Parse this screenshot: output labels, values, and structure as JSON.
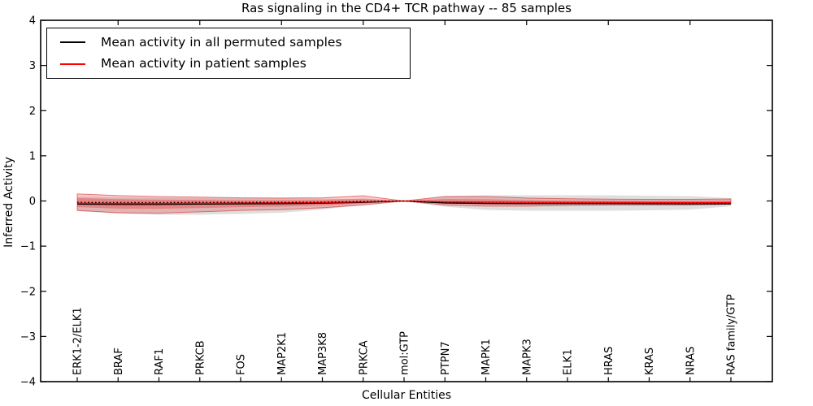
{
  "figure": {
    "title": "Ras signaling in the CD4+ TCR pathway -- 85 samples",
    "xlabel": "Cellular Entities",
    "ylabel": "Inferred Activity"
  },
  "legend": {
    "position": "upper left",
    "entries": [
      {
        "label": "Mean activity in all permuted samples",
        "color": "#000000",
        "style": "solid"
      },
      {
        "label": "Mean activity in patient samples",
        "color": "#ff0000",
        "style": "solid"
      }
    ]
  },
  "colors": {
    "axis": "#000000",
    "permuted_band_fill": "rgba(150,150,150,0.30)",
    "patient_band_outer_fill": "rgba(235,40,40,0.24)",
    "patient_band_outer_stroke": "rgba(215,45,45,0.60)",
    "patient_band_inner_fill": "rgba(235,40,40,0.34)",
    "permuted_line": "#000000",
    "patient_line": "#ff0000",
    "dotted_line": "#000000"
  },
  "chart_data": {
    "type": "line",
    "title": "Ras signaling in the CD4+ TCR pathway -- 85 samples",
    "xlabel": "Cellular Entities",
    "ylabel": "Inferred Activity",
    "ylim": [
      -4,
      4
    ],
    "yticks": [
      -4,
      -3,
      -2,
      -1,
      0,
      1,
      2,
      3,
      4
    ],
    "grid": false,
    "legend_position": "upper left",
    "categories": [
      "ERK1-2/ELK1",
      "BRAF",
      "RAF1",
      "PRKCB",
      "FOS",
      "MAP2K1",
      "MAP3K8",
      "PRKCA",
      "mol:GTP",
      "PTPN7",
      "MAPK1",
      "MAPK3",
      "ELK1",
      "HRAS",
      "KRAS",
      "NRAS",
      "RAS family/GTP"
    ],
    "series": [
      {
        "name": "Mean activity in all permuted samples",
        "color": "#000000",
        "style": "solid",
        "values": [
          -0.07,
          -0.075,
          -0.075,
          -0.07,
          -0.065,
          -0.06,
          -0.05,
          -0.03,
          0,
          -0.045,
          -0.055,
          -0.058,
          -0.06,
          -0.06,
          -0.062,
          -0.065,
          -0.065
        ]
      },
      {
        "name": "Mean activity in patient samples",
        "color": "#ff0000",
        "style": "solid",
        "values": [
          -0.05,
          -0.055,
          -0.055,
          -0.05,
          -0.045,
          -0.04,
          -0.035,
          -0.02,
          0,
          -0.02,
          -0.025,
          -0.028,
          -0.03,
          -0.03,
          -0.032,
          -0.035,
          -0.035
        ]
      },
      {
        "name": "dotted-reference",
        "color": "#000000",
        "style": "dotted",
        "values": [
          -0.03,
          -0.035,
          -0.035,
          -0.03,
          -0.03,
          -0.028,
          -0.025,
          -0.012,
          0,
          -0.04,
          -0.05,
          -0.052,
          -0.054,
          -0.054,
          -0.055,
          -0.055,
          -0.055
        ]
      }
    ],
    "bands": [
      {
        "name": "permuted-samples-band",
        "top": [
          0.1,
          0.08,
          0.08,
          0.07,
          0.06,
          0.06,
          0.055,
          0.035,
          0,
          0.108,
          0.125,
          0.125,
          0.125,
          0.125,
          0.117,
          0.108,
          0.063
        ],
        "bottom": [
          -0.225,
          -0.28,
          -0.305,
          -0.305,
          -0.288,
          -0.26,
          -0.19,
          -0.08,
          0,
          -0.126,
          -0.198,
          -0.216,
          -0.216,
          -0.216,
          -0.207,
          -0.19,
          -0.117
        ]
      },
      {
        "name": "patient-samples-band-outer",
        "top": [
          0.155,
          0.12,
          0.1,
          0.085,
          0.07,
          0.065,
          0.07,
          0.115,
          0,
          0.1,
          0.1,
          0.065,
          0.05,
          0.04,
          0.035,
          0.035,
          0.045
        ],
        "bottom": [
          -0.21,
          -0.26,
          -0.27,
          -0.24,
          -0.21,
          -0.19,
          -0.15,
          -0.09,
          0,
          -0.09,
          -0.115,
          -0.115,
          -0.1,
          -0.09,
          -0.09,
          -0.09,
          -0.07
        ]
      },
      {
        "name": "patient-samples-band-inner",
        "top": [
          0.063,
          0.041,
          0.03,
          0.024,
          0.018,
          0.018,
          0.023,
          0.054,
          0,
          0.044,
          0.039,
          0.018,
          0.01,
          0.004,
          0.0,
          -0.001,
          0.005
        ],
        "bottom": [
          -0.138,
          -0.168,
          -0.173,
          -0.155,
          -0.136,
          -0.123,
          -0.098,
          -0.059,
          0,
          -0.061,
          -0.079,
          -0.081,
          -0.073,
          -0.068,
          -0.068,
          -0.07,
          -0.059
        ]
      }
    ]
  }
}
